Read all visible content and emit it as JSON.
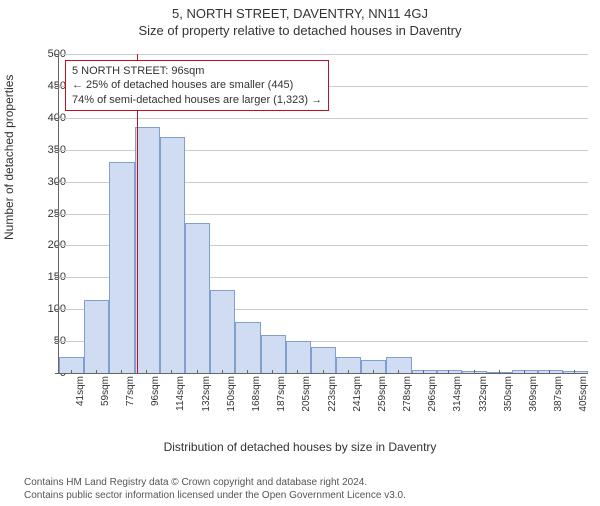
{
  "title": "5, NORTH STREET, DAVENTRY, NN11 4GJ",
  "subtitle": "Size of property relative to detached houses in Daventry",
  "ylabel": "Number of detached properties",
  "xlabel": "Distribution of detached houses by size in Daventry",
  "footer_line1": "Contains HM Land Registry data © Crown copyright and database right 2024.",
  "footer_line2": "Contains public sector information licensed under the Open Government Licence v3.0.",
  "chart": {
    "type": "histogram",
    "ylim": [
      0,
      500
    ],
    "ytick_step": 50,
    "background_color": "#ffffff",
    "grid_color": "#cccccc",
    "axis_color": "#666666",
    "bar_fill": "#cfdcf2",
    "bar_stroke": "#7f9fd0",
    "bar_width_ratio": 1.0,
    "categories": [
      "41sqm",
      "59sqm",
      "77sqm",
      "96sqm",
      "114sqm",
      "132sqm",
      "150sqm",
      "168sqm",
      "187sqm",
      "205sqm",
      "223sqm",
      "241sqm",
      "259sqm",
      "278sqm",
      "296sqm",
      "314sqm",
      "332sqm",
      "350sqm",
      "369sqm",
      "387sqm",
      "405sqm"
    ],
    "values": [
      25,
      115,
      330,
      385,
      370,
      235,
      130,
      80,
      60,
      50,
      40,
      25,
      20,
      25,
      5,
      5,
      3,
      2,
      5,
      4,
      3
    ],
    "yticks": [
      0,
      50,
      100,
      150,
      200,
      250,
      300,
      350,
      400,
      450,
      500
    ],
    "label_fontsize": 12,
    "tick_fontsize": 10
  },
  "marker": {
    "color": "#c01020",
    "category_index": 3
  },
  "callout": {
    "border_color": "#c01020",
    "line1": "5 NORTH STREET: 96sqm",
    "line2": "← 25% of detached houses are smaller (445)",
    "line3": "74% of semi-detached houses are larger (1,323) →"
  }
}
